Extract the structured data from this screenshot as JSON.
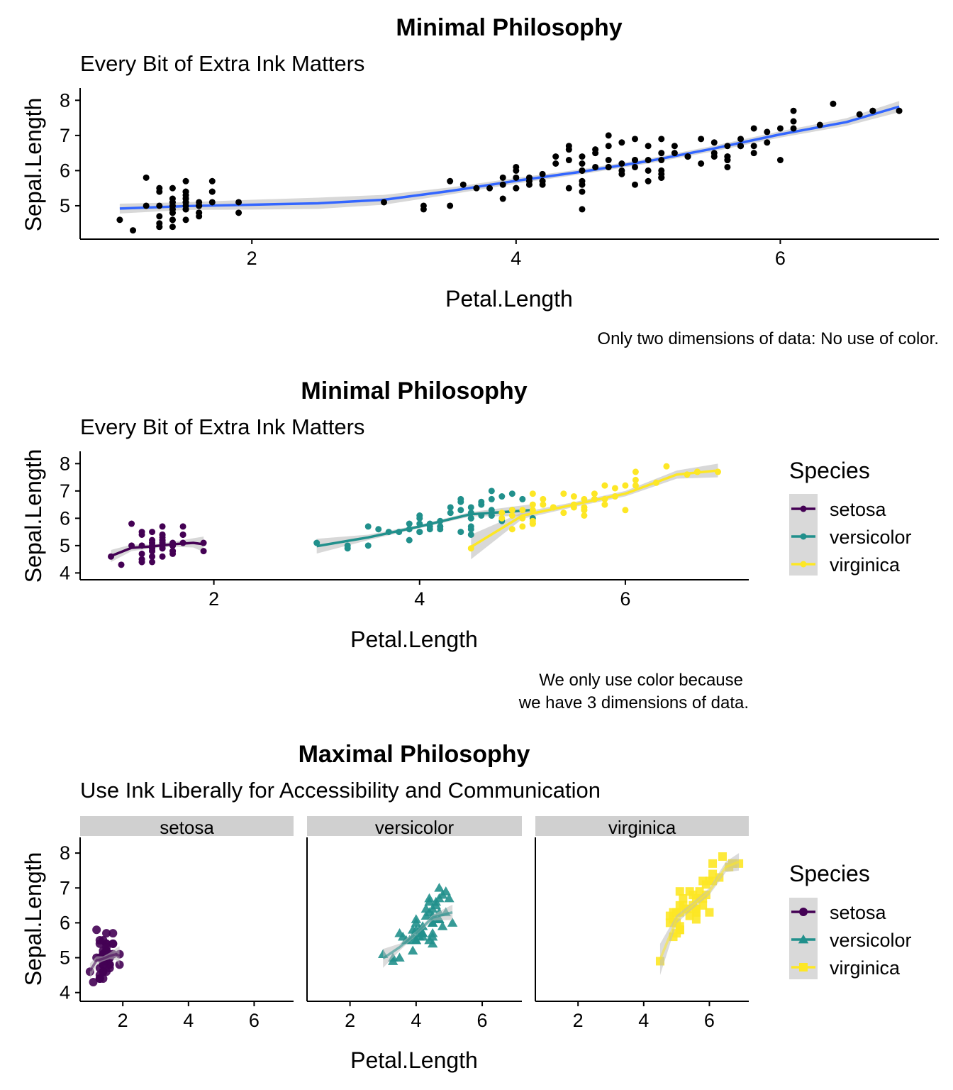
{
  "chart_data": [
    {
      "type": "scatter",
      "title": "Minimal Philosophy",
      "subtitle": "Every Bit of Extra Ink Matters",
      "xlabel": "Petal.Length",
      "ylabel": "Sepal.Length",
      "caption": [
        "Only two dimensions of data: No use of color."
      ],
      "xlim": [
        0.7,
        7.2
      ],
      "ylim": [
        4.05,
        8.35
      ],
      "xticks": [
        2,
        4,
        6
      ],
      "yticks": [
        5,
        6,
        7,
        8
      ],
      "grid": false,
      "legend": "none",
      "point_color": "#000000",
      "smooth_color": "#3366FF",
      "ribbon_color": "#BEBEBE",
      "smooth": {
        "x": [
          1.0,
          1.5,
          2.0,
          2.5,
          3.0,
          3.5,
          4.0,
          4.5,
          5.0,
          5.5,
          6.0,
          6.5,
          6.9
        ],
        "y": [
          4.92,
          4.99,
          5.03,
          5.07,
          5.17,
          5.42,
          5.71,
          5.97,
          6.27,
          6.63,
          7.03,
          7.38,
          7.82
        ],
        "se": [
          0.14,
          0.11,
          0.14,
          0.16,
          0.14,
          0.1,
          0.08,
          0.07,
          0.07,
          0.08,
          0.09,
          0.11,
          0.16
        ]
      },
      "points": [
        [
          1.4,
          5.1
        ],
        [
          1.4,
          4.9
        ],
        [
          1.3,
          4.7
        ],
        [
          1.5,
          4.6
        ],
        [
          1.4,
          5.0
        ],
        [
          1.7,
          5.4
        ],
        [
          1.4,
          4.6
        ],
        [
          1.5,
          5.0
        ],
        [
          1.4,
          4.4
        ],
        [
          1.5,
          4.9
        ],
        [
          1.5,
          5.4
        ],
        [
          1.6,
          4.8
        ],
        [
          1.4,
          4.8
        ],
        [
          1.1,
          4.3
        ],
        [
          1.2,
          5.8
        ],
        [
          1.5,
          5.7
        ],
        [
          1.3,
          5.4
        ],
        [
          1.4,
          5.1
        ],
        [
          1.7,
          5.7
        ],
        [
          1.5,
          5.1
        ],
        [
          1.7,
          5.4
        ],
        [
          1.5,
          5.1
        ],
        [
          1.0,
          4.6
        ],
        [
          1.7,
          5.1
        ],
        [
          1.9,
          4.8
        ],
        [
          1.6,
          5.0
        ],
        [
          1.6,
          5.0
        ],
        [
          1.5,
          5.2
        ],
        [
          1.4,
          5.2
        ],
        [
          1.6,
          4.7
        ],
        [
          1.6,
          4.8
        ],
        [
          1.5,
          5.4
        ],
        [
          1.5,
          5.2
        ],
        [
          1.4,
          5.5
        ],
        [
          1.5,
          4.9
        ],
        [
          1.2,
          5.0
        ],
        [
          1.3,
          5.5
        ],
        [
          1.4,
          4.9
        ],
        [
          1.3,
          4.4
        ],
        [
          1.5,
          5.1
        ],
        [
          1.3,
          5.0
        ],
        [
          1.3,
          4.5
        ],
        [
          1.3,
          4.4
        ],
        [
          1.6,
          5.0
        ],
        [
          1.9,
          5.1
        ],
        [
          1.4,
          4.8
        ],
        [
          1.6,
          5.1
        ],
        [
          1.4,
          4.6
        ],
        [
          1.5,
          5.3
        ],
        [
          1.4,
          5.0
        ],
        [
          4.7,
          7.0
        ],
        [
          4.5,
          6.4
        ],
        [
          4.9,
          6.9
        ],
        [
          4.0,
          5.5
        ],
        [
          4.6,
          6.5
        ],
        [
          4.5,
          5.7
        ],
        [
          4.7,
          6.3
        ],
        [
          3.3,
          4.9
        ],
        [
          4.6,
          6.6
        ],
        [
          3.9,
          5.2
        ],
        [
          3.5,
          5.0
        ],
        [
          4.2,
          5.9
        ],
        [
          4.0,
          6.0
        ],
        [
          4.7,
          6.1
        ],
        [
          3.6,
          5.6
        ],
        [
          4.4,
          6.7
        ],
        [
          4.5,
          5.6
        ],
        [
          4.1,
          5.8
        ],
        [
          4.5,
          6.2
        ],
        [
          3.9,
          5.6
        ],
        [
          4.8,
          5.9
        ],
        [
          4.0,
          6.1
        ],
        [
          4.9,
          6.3
        ],
        [
          4.7,
          6.1
        ],
        [
          4.3,
          6.4
        ],
        [
          4.4,
          6.6
        ],
        [
          4.8,
          6.8
        ],
        [
          5.0,
          6.7
        ],
        [
          4.5,
          6.0
        ],
        [
          3.5,
          5.7
        ],
        [
          3.8,
          5.5
        ],
        [
          3.7,
          5.5
        ],
        [
          3.9,
          5.8
        ],
        [
          5.1,
          6.0
        ],
        [
          4.5,
          5.4
        ],
        [
          4.5,
          6.0
        ],
        [
          4.7,
          6.7
        ],
        [
          4.4,
          6.3
        ],
        [
          4.1,
          5.6
        ],
        [
          4.0,
          5.5
        ],
        [
          4.4,
          5.5
        ],
        [
          4.6,
          6.1
        ],
        [
          4.0,
          5.8
        ],
        [
          3.3,
          5.0
        ],
        [
          4.2,
          5.6
        ],
        [
          4.2,
          5.7
        ],
        [
          4.2,
          5.7
        ],
        [
          4.3,
          6.2
        ],
        [
          3.0,
          5.1
        ],
        [
          4.1,
          5.7
        ],
        [
          6.0,
          6.3
        ],
        [
          5.1,
          5.8
        ],
        [
          5.9,
          7.1
        ],
        [
          5.6,
          6.3
        ],
        [
          5.8,
          6.5
        ],
        [
          6.6,
          7.6
        ],
        [
          4.5,
          4.9
        ],
        [
          6.3,
          7.3
        ],
        [
          5.8,
          6.7
        ],
        [
          6.1,
          7.2
        ],
        [
          5.1,
          6.5
        ],
        [
          5.3,
          6.4
        ],
        [
          5.5,
          6.8
        ],
        [
          5.0,
          5.7
        ],
        [
          5.1,
          5.8
        ],
        [
          5.3,
          6.4
        ],
        [
          5.5,
          6.5
        ],
        [
          6.7,
          7.7
        ],
        [
          6.9,
          7.7
        ],
        [
          5.0,
          6.0
        ],
        [
          5.7,
          6.9
        ],
        [
          4.9,
          5.6
        ],
        [
          6.7,
          7.7
        ],
        [
          4.9,
          6.3
        ],
        [
          5.7,
          6.7
        ],
        [
          6.0,
          7.2
        ],
        [
          4.8,
          6.2
        ],
        [
          4.9,
          6.1
        ],
        [
          5.6,
          6.4
        ],
        [
          5.8,
          7.2
        ],
        [
          6.1,
          7.4
        ],
        [
          6.4,
          7.9
        ],
        [
          5.6,
          6.4
        ],
        [
          5.1,
          6.3
        ],
        [
          5.6,
          6.1
        ],
        [
          6.1,
          7.7
        ],
        [
          5.6,
          6.3
        ],
        [
          5.5,
          6.4
        ],
        [
          4.8,
          6.0
        ],
        [
          5.4,
          6.9
        ],
        [
          5.6,
          6.7
        ],
        [
          5.1,
          6.9
        ],
        [
          5.1,
          5.8
        ],
        [
          5.9,
          6.8
        ],
        [
          5.7,
          6.7
        ],
        [
          5.2,
          6.7
        ],
        [
          5.0,
          6.3
        ],
        [
          5.2,
          6.5
        ],
        [
          5.4,
          6.2
        ],
        [
          5.1,
          5.9
        ]
      ]
    },
    {
      "type": "scatter",
      "title": "Minimal Philosophy",
      "subtitle": "Every Bit of Extra Ink Matters",
      "xlabel": "Petal.Length",
      "ylabel": "Sepal.Length",
      "caption": [
        "We only use color because",
        "we have 3 dimensions of data."
      ],
      "xlim": [
        0.7,
        7.2
      ],
      "ylim": [
        3.75,
        8.45
      ],
      "xticks": [
        2,
        4,
        6
      ],
      "yticks": [
        4,
        5,
        6,
        7,
        8
      ],
      "grid": false,
      "legend": "right",
      "legend_title": "Species",
      "series": [
        {
          "name": "setosa",
          "color": "#440154",
          "smooth": {
            "x": [
              1.0,
              1.2,
              1.4,
              1.6,
              1.8,
              1.9
            ],
            "y": [
              4.62,
              4.92,
              4.97,
              5.05,
              5.1,
              5.05
            ],
            "se": [
              0.22,
              0.12,
              0.07,
              0.09,
              0.17,
              0.28
            ]
          }
        },
        {
          "name": "versicolor",
          "color": "#21908C",
          "smooth": {
            "x": [
              3.0,
              3.5,
              4.0,
              4.5,
              5.1
            ],
            "y": [
              4.98,
              5.3,
              5.7,
              6.15,
              6.3
            ],
            "se": [
              0.27,
              0.1,
              0.06,
              0.08,
              0.22
            ]
          }
        },
        {
          "name": "virginica",
          "color": "#FDE725",
          "smooth": {
            "x": [
              4.5,
              5.0,
              5.5,
              6.0,
              6.5,
              6.9
            ],
            "y": [
              4.95,
              6.1,
              6.5,
              6.9,
              7.6,
              7.75
            ],
            "se": [
              0.45,
              0.12,
              0.09,
              0.1,
              0.15,
              0.25
            ]
          }
        }
      ]
    },
    {
      "type": "scatter",
      "title": "Maximal Philosophy",
      "subtitle": "Use Ink Liberally for Accessibility and Communication",
      "xlabel": "Petal.Length",
      "ylabel": "Sepal.Length",
      "xlim": [
        0.7,
        7.2
      ],
      "ylim": [
        3.75,
        8.45
      ],
      "xticks": [
        2,
        4,
        6
      ],
      "yticks": [
        4,
        5,
        6,
        7,
        8
      ],
      "grid": false,
      "legend": "right",
      "legend_title": "Species",
      "facets": [
        "setosa",
        "versicolor",
        "virginica"
      ],
      "shapes": {
        "setosa": "circle",
        "versicolor": "triangle",
        "virginica": "square"
      },
      "facet_strip_color": "#D0D0D0"
    }
  ]
}
